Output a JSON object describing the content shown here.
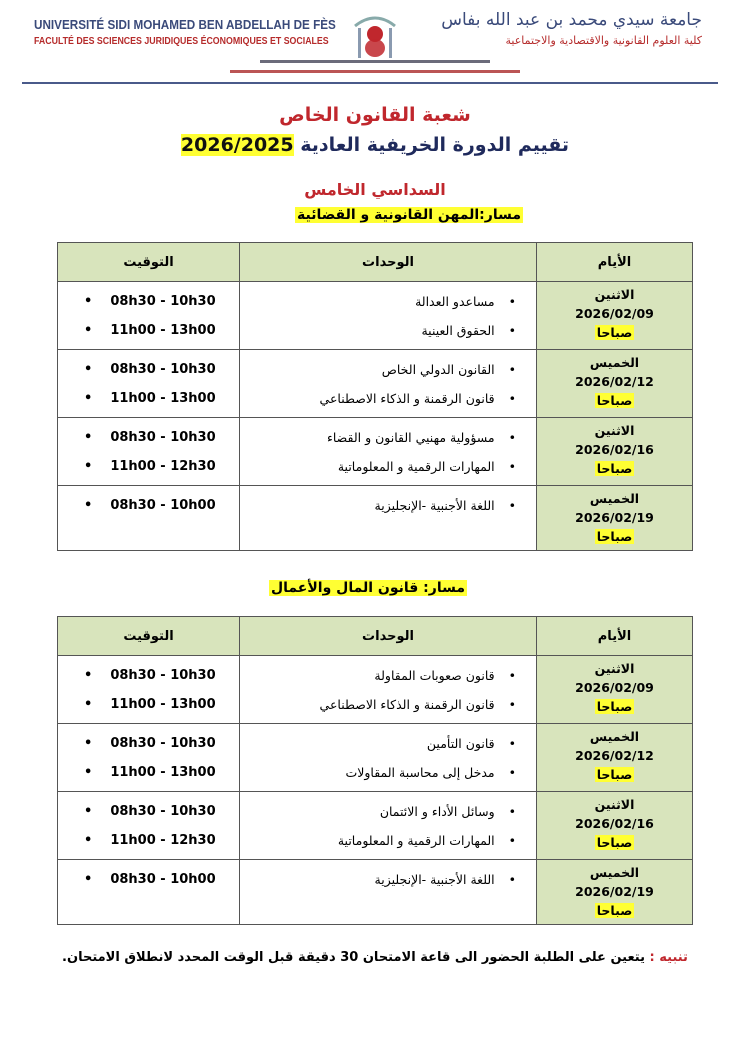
{
  "header": {
    "fr_university": "UNIVERSITÉ SIDI MOHAMED BEN ABDELLAH DE FÈS",
    "fr_faculty": "FACULTÉ DES SCIENCES JURIDIQUES ÉCONOMIQUES ET SOCIALES",
    "ar_university": "جامعة سيدي محمد بن عبد الله بفاس",
    "ar_faculty": "كلية العلوم القانونية والاقتصادية والاجتماعية"
  },
  "title": {
    "department": "شعبة القانون الخاص",
    "session": "تقييم الدورة الخريفية العادية",
    "year": "2026/2025",
    "semester": "السداسي الخامس"
  },
  "columns": {
    "days": "الأيام",
    "units": "الوحدات",
    "time": "التوقيت"
  },
  "tracks": [
    {
      "label": "مسار:المهن القانونية و القضائية",
      "rows": [
        {
          "day": "الاثنين",
          "date": "2026/02/09",
          "period": "صباحا",
          "units": [
            "مساعدو العدالة",
            "الحقوق العينية"
          ],
          "times": [
            "08h30 - 10h30",
            "11h00 - 13h00"
          ]
        },
        {
          "day": "الخميس",
          "date": "2026/02/12",
          "period": "صباحا",
          "units": [
            "القانون الدولي الخاص",
            "قانون الرقمنة و الذكاء الاصطناعي"
          ],
          "times": [
            "08h30 - 10h30",
            "11h00 - 13h00"
          ]
        },
        {
          "day": "الاثنين",
          "date": "2026/02/16",
          "period": "صباحا",
          "units": [
            "مسؤولية مهنيي القانون و القضاء",
            "المهارات الرقمية و المعلوماتية"
          ],
          "times": [
            "08h30 - 10h30",
            "11h00 - 12h30"
          ]
        },
        {
          "day": "الخميس",
          "date": "2026/02/19",
          "period": "صباحا",
          "units": [
            "اللغة الأجنبية -الإنجليزية"
          ],
          "times": [
            "08h30 - 10h00"
          ]
        }
      ]
    },
    {
      "label": "مسار: قانون المال والأعمال",
      "rows": [
        {
          "day": "الاثنين",
          "date": "2026/02/09",
          "period": "صباحا",
          "units": [
            "قانون صعوبات المقاولة",
            "قانون الرقمنة و الذكاء الاصطناعي"
          ],
          "times": [
            "08h30 - 10h30",
            "11h00 - 13h00"
          ]
        },
        {
          "day": "الخميس",
          "date": "2026/02/12",
          "period": "صباحا",
          "units": [
            "قانون التأمين",
            "مدخل إلى محاسبة المقاولات"
          ],
          "times": [
            "08h30 - 10h30",
            "11h00 - 13h00"
          ]
        },
        {
          "day": "الاثنين",
          "date": "2026/02/16",
          "period": "صباحا",
          "units": [
            "وسائل الأداء و الائتمان",
            "المهارات الرقمية و المعلوماتية"
          ],
          "times": [
            "08h30 - 10h30",
            "11h00 - 12h30"
          ]
        },
        {
          "day": "الخميس",
          "date": "2026/02/19",
          "period": "صباحا",
          "units": [
            "اللغة الأجنبية -الإنجليزية"
          ],
          "times": [
            "08h30 - 10h00"
          ]
        }
      ]
    }
  ],
  "note": {
    "label": "تنبيه :",
    "text": "يتعين على الطلبة الحضور الى قاعة الامتحان 30 دقيقة قبل الوقت المحدد لانطلاق الامتحان."
  },
  "colors": {
    "header_green": "#d8e4bc",
    "highlight": "#ffff33",
    "title_red": "#c0272d",
    "title_navy": "#1f2a5c"
  }
}
